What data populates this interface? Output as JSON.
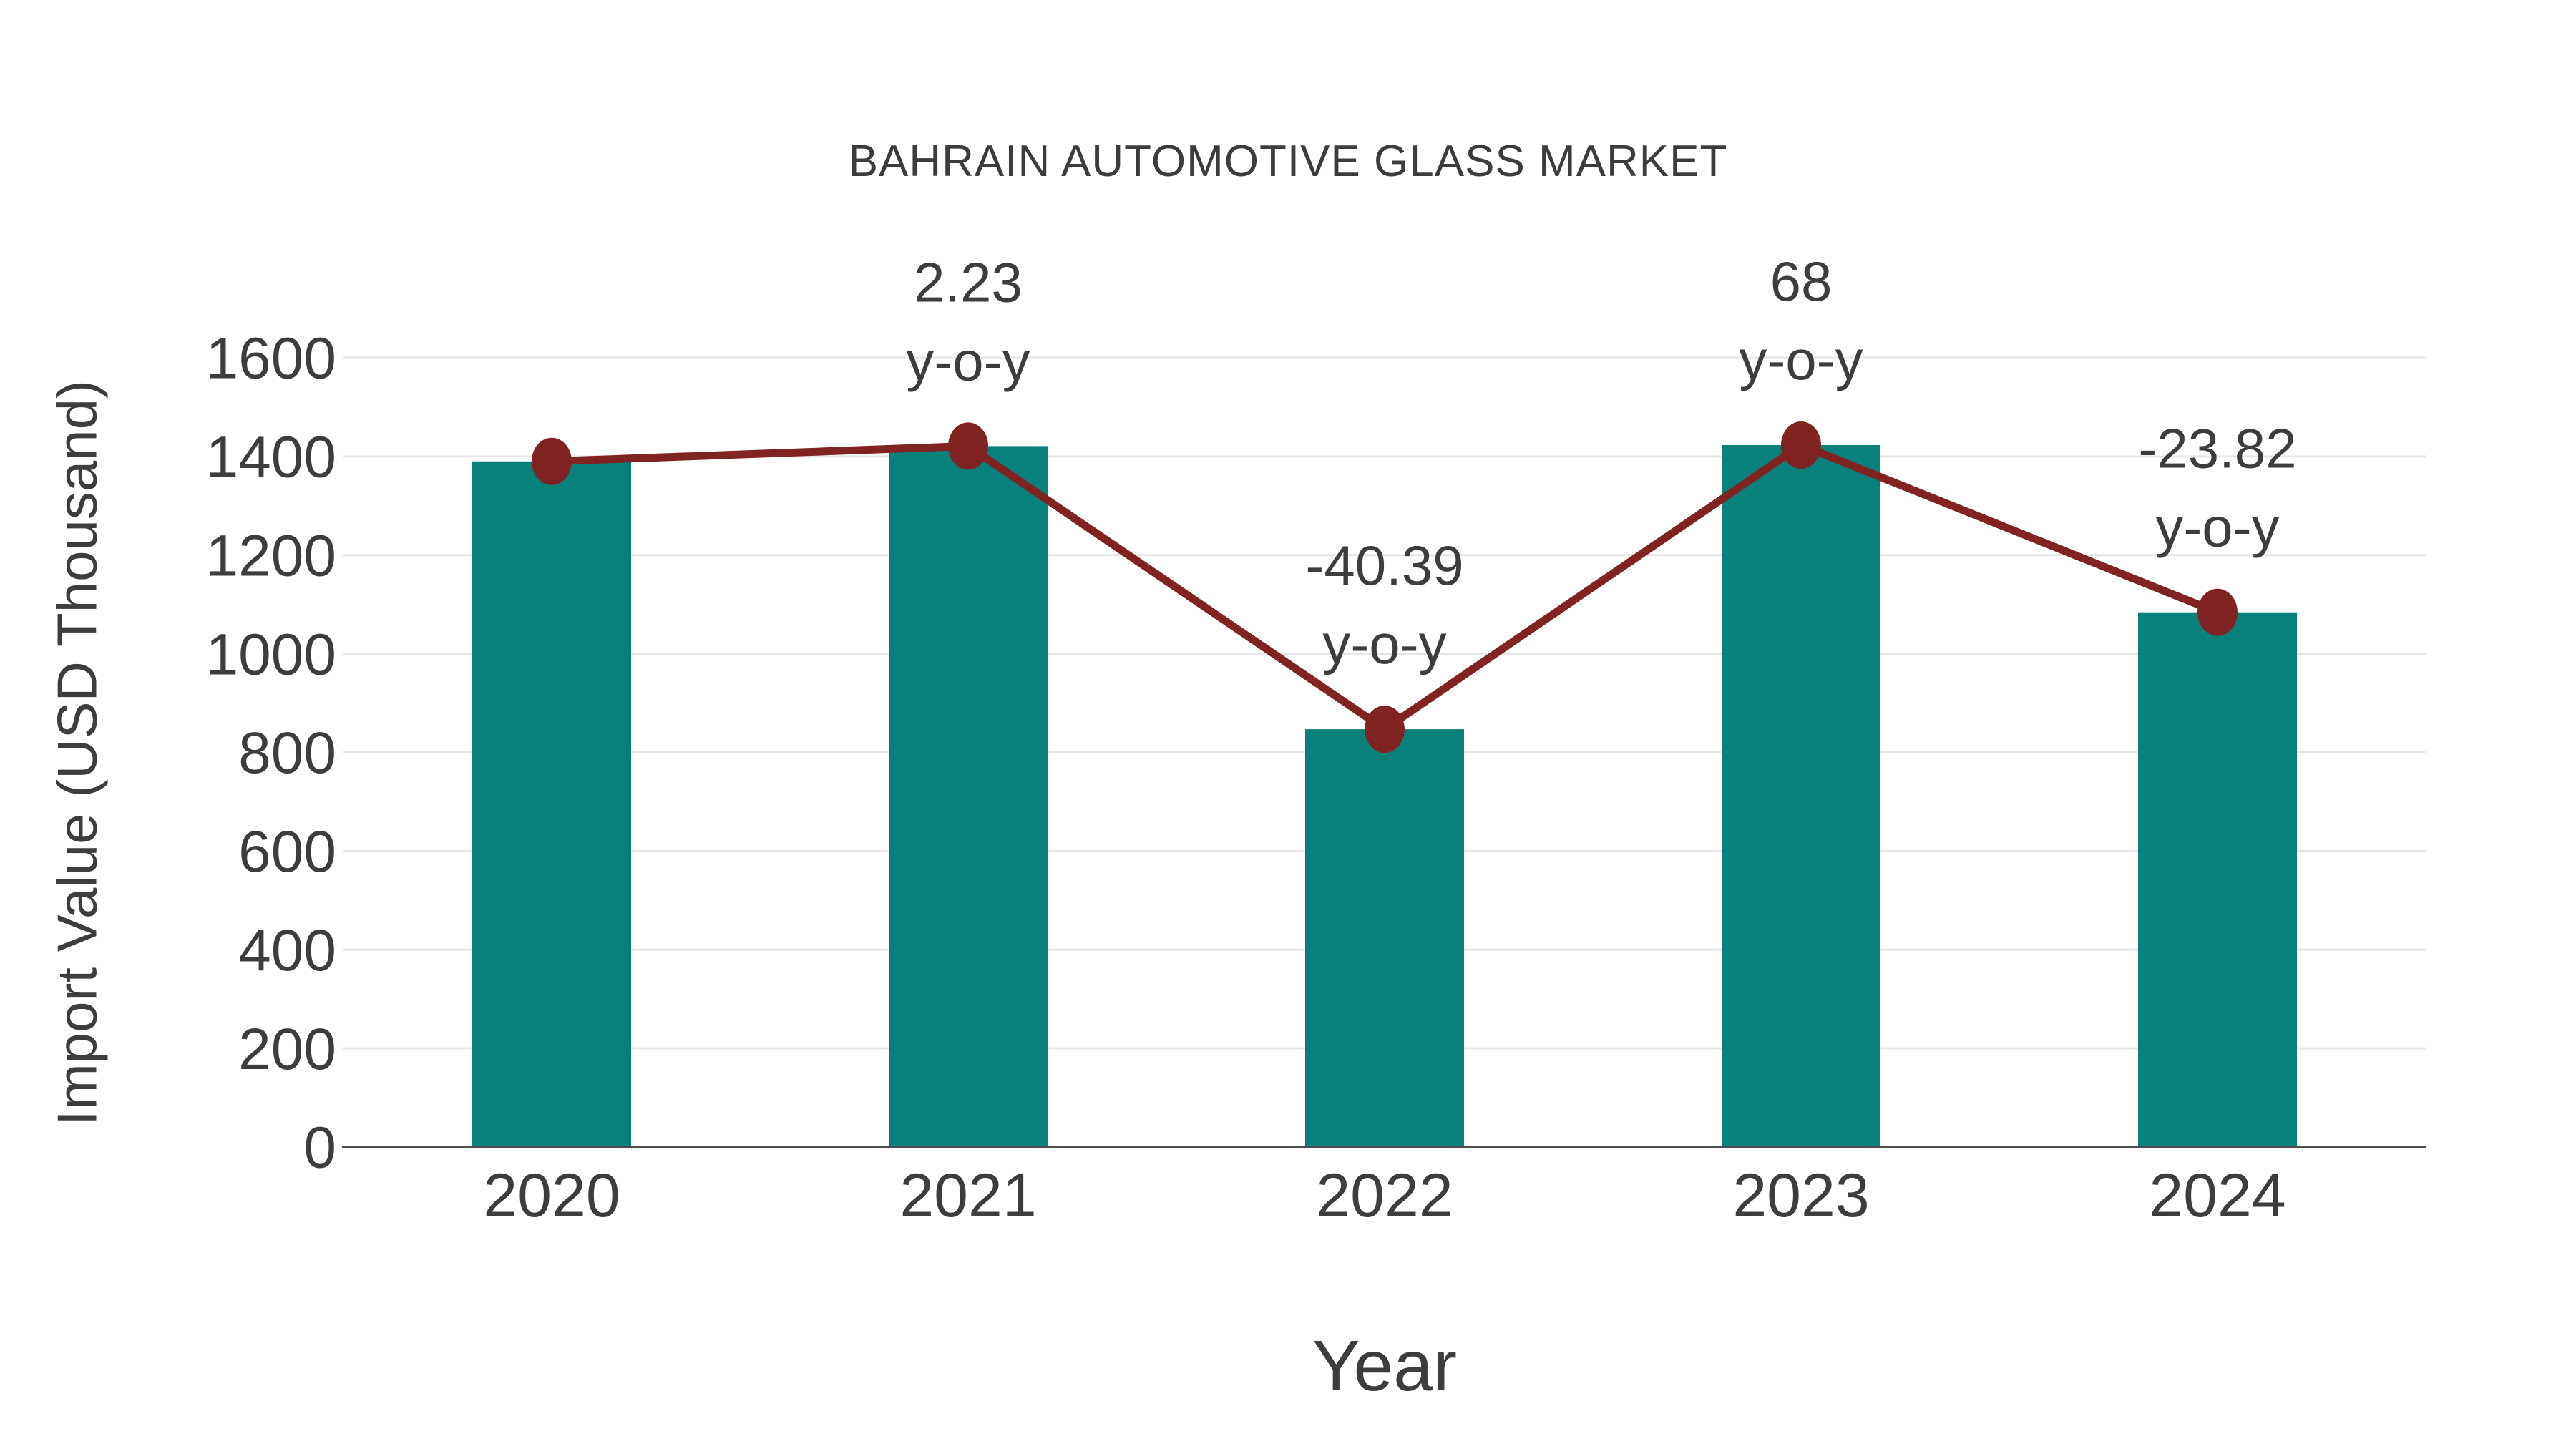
{
  "chart_data": {
    "type": "bar",
    "title": "BAHRAIN AUTOMOTIVE GLASS MARKET",
    "xlabel": "Year",
    "ylabel": "Import Value (USD Thousand)",
    "categories": [
      "2020",
      "2021",
      "2022",
      "2023",
      "2024"
    ],
    "series": [
      {
        "name": "import-value-bars",
        "type": "bar",
        "values": [
          1390,
          1421,
          847,
          1423,
          1084
        ]
      },
      {
        "name": "import-value-trend-line",
        "type": "line",
        "values": [
          1390,
          1421,
          847,
          1423,
          1084
        ]
      }
    ],
    "annotations": [
      {
        "category": "2021",
        "line1": "2.23",
        "line2": "y-o-y"
      },
      {
        "category": "2022",
        "line1": "-40.39",
        "line2": "y-o-y"
      },
      {
        "category": "2023",
        "line1": "68",
        "line2": "y-o-y"
      },
      {
        "category": "2024",
        "line1": "-23.82",
        "line2": "y-o-y"
      }
    ],
    "ylim": [
      0,
      1600
    ],
    "yticks": [
      0,
      200,
      400,
      600,
      800,
      1000,
      1200,
      1400,
      1600
    ],
    "grid": true,
    "legend_position": "none",
    "colors": {
      "bar": "#08817b",
      "line": "#802322",
      "marker": "#802322",
      "grid": "#e6e6e6",
      "axis": "#4d4d4d",
      "text": "#3d3d3d"
    }
  }
}
